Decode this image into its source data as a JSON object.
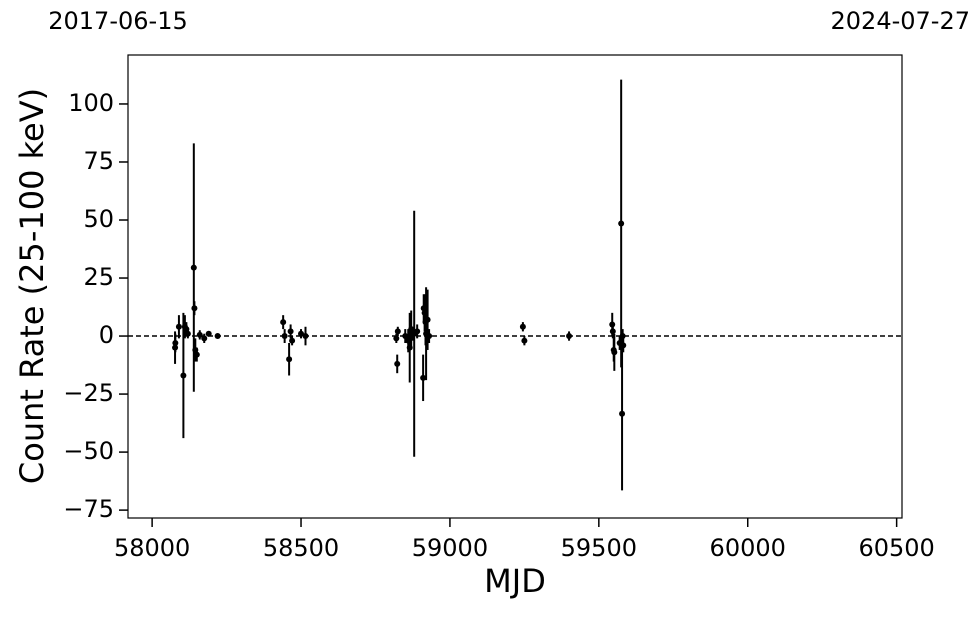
{
  "chart_data": {
    "type": "errorbar",
    "xlabel": "MJD",
    "ylabel": "Count Rate (25-100 keV)",
    "xlim": [
      57919,
      60518
    ],
    "ylim": [
      -78.4,
      121.1
    ],
    "xticks": [
      58000,
      58500,
      59000,
      59500,
      60000,
      60500
    ],
    "yticks": [
      {
        "value": -75,
        "label": "−75"
      },
      {
        "value": -50,
        "label": "−50"
      },
      {
        "value": -25,
        "label": "−25"
      },
      0,
      25,
      50,
      75,
      100
    ],
    "top_labels": [
      {
        "value": 57919,
        "label": "2017-06-15"
      },
      {
        "value": 60518,
        "label": "2024-07-27"
      }
    ],
    "hline": 0,
    "color": "#000000",
    "x": [
      58077,
      58078,
      58090,
      58105,
      58110,
      58115,
      58120,
      58140,
      58142,
      58145,
      58150,
      58160,
      58175,
      58190,
      58220,
      58440,
      58445,
      58460,
      58465,
      58470,
      58500,
      58515,
      58820,
      58823,
      58825,
      58850,
      58860,
      58865,
      58870,
      58875,
      58880,
      58890,
      58910,
      58912,
      58915,
      58918,
      58920,
      58925,
      58930,
      59245,
      59250,
      59400,
      59545,
      59547,
      59550,
      59552,
      59570,
      59575,
      59578,
      59580,
      59582
    ],
    "values": [
      -5,
      -3,
      4,
      -17,
      4,
      3,
      1,
      29.5,
      12,
      -6,
      -8,
      0.5,
      -1,
      1,
      0,
      6,
      0,
      -10,
      2,
      -2,
      1,
      0,
      -1,
      -12,
      2,
      0,
      -2,
      -5,
      3,
      1,
      1,
      2,
      -18,
      12,
      10,
      6,
      1,
      7,
      0,
      4,
      -2,
      0,
      5,
      2,
      -6,
      -7,
      -3,
      48.5,
      -33.5,
      0,
      -4
    ],
    "errors": [
      7,
      4,
      5,
      27,
      5,
      3,
      2,
      53.5,
      3,
      5,
      3,
      2,
      2,
      1,
      1,
      3,
      3,
      7,
      3,
      2,
      2,
      4,
      2,
      4,
      2,
      3,
      5,
      15,
      8,
      3,
      53,
      3,
      10,
      6,
      8,
      10,
      20,
      13,
      3,
      2,
      2,
      2,
      5,
      3,
      5,
      8,
      3,
      62,
      33,
      3,
      3
    ]
  }
}
